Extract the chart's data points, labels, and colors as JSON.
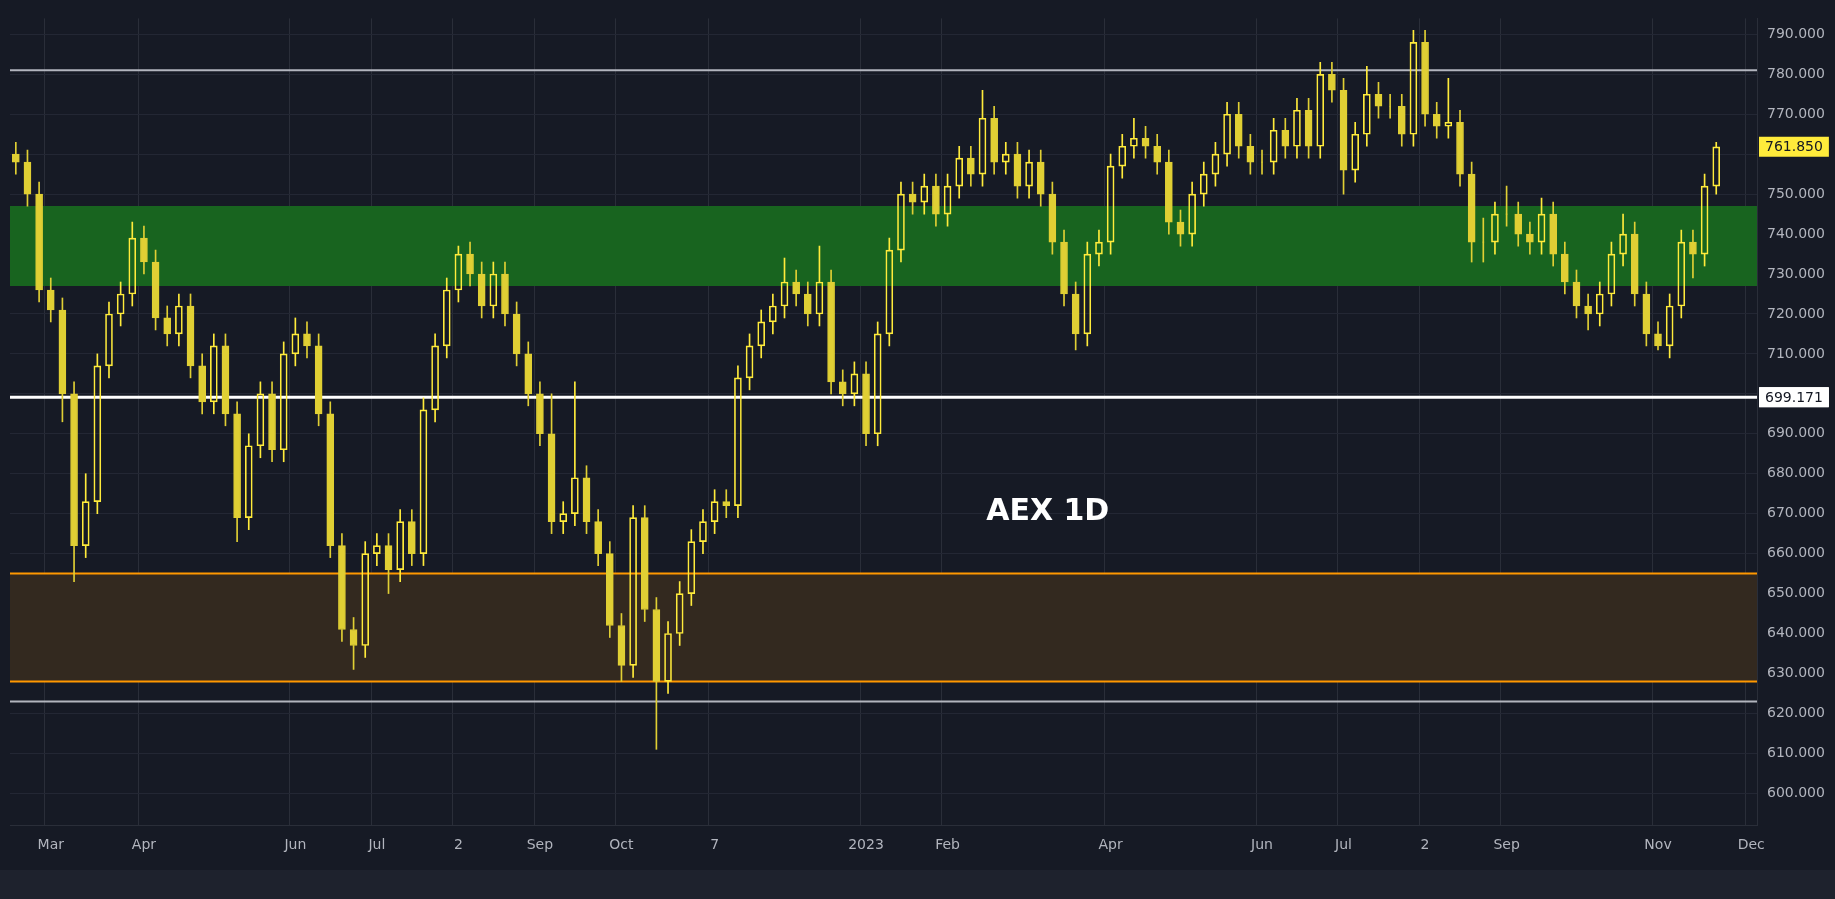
{
  "chart_data": {
    "type": "candlestick",
    "title": "AEX 1D",
    "color": "#ffeb3b",
    "categories": [
      null,
      null,
      null,
      "Mar",
      null,
      null,
      null,
      null,
      null,
      null,
      null,
      "Apr",
      null,
      null,
      null,
      null,
      null,
      null,
      null,
      null,
      null,
      null,
      null,
      null,
      "Jun",
      null,
      null,
      null,
      null,
      null,
      null,
      "Jul",
      null,
      null,
      null,
      null,
      null,
      null,
      "2",
      null,
      null,
      null,
      null,
      null,
      null,
      "Sep",
      null,
      null,
      null,
      null,
      null,
      null,
      "Oct",
      null,
      null,
      null,
      null,
      null,
      null,
      null,
      "7",
      null,
      null,
      null,
      null,
      null,
      null,
      null,
      null,
      null,
      null,
      null,
      null,
      "2023",
      null,
      null,
      null,
      null,
      null,
      null,
      "Feb",
      null,
      null,
      null,
      null,
      null,
      null,
      null,
      null,
      null,
      null,
      null,
      null,
      null,
      "Apr",
      null,
      null,
      null,
      null,
      null,
      null,
      null,
      null,
      null,
      null,
      null,
      null,
      "Jun",
      null,
      null,
      null,
      null,
      null,
      null,
      "Jul",
      null,
      null,
      null,
      null,
      null,
      null,
      "2",
      null,
      null,
      null,
      null,
      null,
      null,
      "Sep",
      null,
      null,
      null,
      null,
      null,
      null,
      null,
      null,
      null,
      null,
      null,
      null,
      "Nov",
      null,
      null,
      null,
      null,
      null,
      null,
      null,
      "Dec"
    ],
    "ohlc": [
      [
        760,
        763,
        755,
        758
      ],
      [
        758,
        761,
        747,
        750
      ],
      [
        750,
        753,
        723,
        726
      ],
      [
        726,
        729,
        718,
        721
      ],
      [
        721,
        724,
        693,
        700
      ],
      [
        700,
        703,
        653,
        662
      ],
      [
        662,
        680,
        659,
        673
      ],
      [
        673,
        710,
        670,
        707
      ],
      [
        707,
        723,
        704,
        720
      ],
      [
        720,
        728,
        717,
        725
      ],
      [
        725,
        743,
        722,
        739
      ],
      [
        739,
        742,
        730,
        733
      ],
      [
        733,
        736,
        716,
        719
      ],
      [
        719,
        722,
        712,
        715
      ],
      [
        715,
        725,
        712,
        722
      ],
      [
        722,
        725,
        704,
        707
      ],
      [
        707,
        710,
        695,
        698
      ],
      [
        698,
        715,
        695,
        712
      ],
      [
        712,
        715,
        692,
        695
      ],
      [
        695,
        698,
        663,
        669
      ],
      [
        669,
        690,
        666,
        687
      ],
      [
        687,
        703,
        684,
        700
      ],
      [
        700,
        703,
        683,
        686
      ],
      [
        686,
        713,
        683,
        710
      ],
      [
        710,
        719,
        707,
        715
      ],
      [
        715,
        718,
        709,
        712
      ],
      [
        712,
        715,
        692,
        695
      ],
      [
        695,
        698,
        659,
        662
      ],
      [
        662,
        665,
        638,
        641
      ],
      [
        641,
        644,
        631,
        637
      ],
      [
        637,
        663,
        634,
        660
      ],
      [
        660,
        665,
        657,
        662
      ],
      [
        662,
        665,
        650,
        656
      ],
      [
        656,
        671,
        653,
        668
      ],
      [
        668,
        671,
        657,
        660
      ],
      [
        660,
        699,
        657,
        696
      ],
      [
        696,
        715,
        693,
        712
      ],
      [
        712,
        729,
        709,
        726
      ],
      [
        726,
        737,
        723,
        735
      ],
      [
        735,
        738,
        727,
        730
      ],
      [
        730,
        733,
        719,
        722
      ],
      [
        722,
        733,
        719,
        730
      ],
      [
        730,
        733,
        717,
        720
      ],
      [
        720,
        723,
        707,
        710
      ],
      [
        710,
        713,
        697,
        700
      ],
      [
        700,
        703,
        687,
        690
      ],
      [
        690,
        700,
        665,
        668
      ],
      [
        668,
        673,
        665,
        670
      ],
      [
        670,
        703,
        667,
        679
      ],
      [
        679,
        682,
        665,
        668
      ],
      [
        668,
        671,
        657,
        660
      ],
      [
        660,
        663,
        639,
        642
      ],
      [
        642,
        645,
        628,
        632
      ],
      [
        632,
        672,
        629,
        669
      ],
      [
        669,
        672,
        643,
        646
      ],
      [
        646,
        649,
        611,
        628
      ],
      [
        628,
        643,
        625,
        640
      ],
      [
        640,
        653,
        637,
        650
      ],
      [
        650,
        666,
        647,
        663
      ],
      [
        663,
        671,
        660,
        668
      ],
      [
        668,
        676,
        665,
        673
      ],
      [
        673,
        676,
        669,
        672
      ],
      [
        672,
        707,
        669,
        704
      ],
      [
        704,
        715,
        701,
        712
      ],
      [
        712,
        721,
        709,
        718
      ],
      [
        718,
        725,
        715,
        722
      ],
      [
        722,
        734,
        719,
        728
      ],
      [
        728,
        731,
        722,
        725
      ],
      [
        725,
        728,
        717,
        720
      ],
      [
        720,
        737,
        717,
        728
      ],
      [
        728,
        731,
        700,
        703
      ],
      [
        703,
        706,
        697,
        700
      ],
      [
        700,
        708,
        697,
        705
      ],
      [
        705,
        708,
        687,
        690
      ],
      [
        690,
        718,
        687,
        715
      ],
      [
        715,
        739,
        712,
        736
      ],
      [
        736,
        753,
        733,
        750
      ],
      [
        750,
        753,
        745,
        748
      ],
      [
        748,
        755,
        745,
        752
      ],
      [
        752,
        755,
        742,
        745
      ],
      [
        745,
        755,
        742,
        752
      ],
      [
        752,
        762,
        749,
        759
      ],
      [
        759,
        762,
        752,
        755
      ],
      [
        755,
        776,
        752,
        769
      ],
      [
        769,
        772,
        755,
        758
      ],
      [
        758,
        763,
        755,
        760
      ],
      [
        760,
        763,
        749,
        752
      ],
      [
        752,
        761,
        749,
        758
      ],
      [
        758,
        761,
        747,
        750
      ],
      [
        750,
        753,
        735,
        738
      ],
      [
        738,
        741,
        722,
        725
      ],
      [
        725,
        728,
        711,
        715
      ],
      [
        715,
        738,
        712,
        735
      ],
      [
        735,
        741,
        732,
        738
      ],
      [
        738,
        760,
        735,
        757
      ],
      [
        757,
        765,
        754,
        762
      ],
      [
        762,
        769,
        759,
        764
      ],
      [
        764,
        767,
        759,
        762
      ],
      [
        762,
        765,
        755,
        758
      ],
      [
        758,
        761,
        740,
        743
      ],
      [
        743,
        746,
        737,
        740
      ],
      [
        740,
        753,
        737,
        750
      ],
      [
        750,
        758,
        747,
        755
      ],
      [
        755,
        763,
        752,
        760
      ],
      [
        760,
        773,
        757,
        770
      ],
      [
        770,
        773,
        759,
        762
      ],
      [
        762,
        765,
        755,
        758
      ],
      [
        758,
        761,
        755,
        758
      ],
      [
        758,
        769,
        755,
        766
      ],
      [
        766,
        769,
        759,
        762
      ],
      [
        762,
        774,
        759,
        771
      ],
      [
        771,
        774,
        759,
        762
      ],
      [
        762,
        783,
        759,
        780
      ],
      [
        780,
        783,
        773,
        776
      ],
      [
        776,
        779,
        750,
        756
      ],
      [
        756,
        768,
        753,
        765
      ],
      [
        765,
        782,
        762,
        775
      ],
      [
        775,
        778,
        769,
        772
      ],
      [
        772,
        775,
        769,
        772
      ],
      [
        772,
        775,
        762,
        765
      ],
      [
        765,
        791,
        762,
        788
      ],
      [
        788,
        791,
        767,
        770
      ],
      [
        770,
        773,
        764,
        767
      ],
      [
        767,
        779,
        764,
        768
      ],
      [
        768,
        771,
        752,
        755
      ],
      [
        755,
        758,
        733,
        738
      ],
      [
        738,
        744,
        733,
        738
      ],
      [
        738,
        748,
        735,
        745
      ],
      [
        745,
        752,
        742,
        745
      ],
      [
        745,
        748,
        737,
        740
      ],
      [
        740,
        743,
        735,
        738
      ],
      [
        738,
        749,
        735,
        745
      ],
      [
        745,
        748,
        732,
        735
      ],
      [
        735,
        738,
        725,
        728
      ],
      [
        728,
        731,
        719,
        722
      ],
      [
        722,
        725,
        716,
        720
      ],
      [
        720,
        728,
        717,
        725
      ],
      [
        725,
        738,
        722,
        735
      ],
      [
        735,
        745,
        732,
        740
      ],
      [
        740,
        743,
        722,
        725
      ],
      [
        725,
        728,
        712,
        715
      ],
      [
        715,
        718,
        711,
        712
      ],
      [
        712,
        725,
        709,
        722
      ],
      [
        722,
        741,
        719,
        738
      ],
      [
        738,
        741,
        729,
        735
      ],
      [
        735,
        755,
        732,
        752
      ],
      [
        752,
        763,
        750,
        761.85
      ],
      null,
      null,
      null
    ],
    "colors": [
      "#e0cf34",
      "#e0cf34",
      "#e0cf34",
      "#e0cf34",
      "#e0cf34",
      "#e0cf34",
      "#ffeb3b",
      "#ffeb3b",
      "#ffeb3b",
      "#ffeb3b",
      "#ffeb3b",
      "#e0cf34",
      "#e0cf34",
      "#e0cf34",
      "#ffeb3b",
      "#e0cf34",
      "#e0cf34",
      "#ffeb3b",
      "#e0cf34",
      "#e0cf34",
      "#ffeb3b",
      "#ffeb3b",
      "#e0cf34",
      "#ffeb3b",
      "#ffeb3b",
      "#e0cf34",
      "#e0cf34",
      "#e0cf34",
      "#e0cf34",
      "#e0cf34",
      "#ffeb3b",
      "#ffeb3b",
      "#e0cf34",
      "#ffeb3b",
      "#e0cf34",
      "#ffeb3b",
      "#ffeb3b",
      "#ffeb3b",
      "#ffeb3b",
      "#e0cf34",
      "#e0cf34",
      "#ffeb3b",
      "#e0cf34",
      "#e0cf34",
      "#e0cf34",
      "#e0cf34",
      "#e0cf34",
      "#ffeb3b",
      "#ffeb3b",
      "#e0cf34",
      "#e0cf34",
      "#e0cf34",
      "#e0cf34",
      "#ffeb3b",
      "#e0cf34",
      "#e0cf34",
      "#ffeb3b",
      "#ffeb3b",
      "#ffeb3b",
      "#ffeb3b",
      "#ffeb3b",
      "#e0cf34",
      "#ffeb3b",
      "#ffeb3b",
      "#ffeb3b",
      "#ffeb3b",
      "#ffeb3b",
      "#e0cf34",
      "#e0cf34",
      "#ffeb3b",
      "#e0cf34",
      "#e0cf34",
      "#ffeb3b",
      "#e0cf34",
      "#ffeb3b",
      "#ffeb3b",
      "#ffeb3b",
      "#e0cf34",
      "#ffeb3b",
      "#e0cf34",
      "#ffeb3b",
      "#ffeb3b",
      "#e0cf34",
      "#ffeb3b",
      "#e0cf34",
      "#ffeb3b",
      "#e0cf34",
      "#ffeb3b",
      "#e0cf34",
      "#e0cf34",
      "#e0cf34",
      "#e0cf34",
      "#ffeb3b",
      "#ffeb3b",
      "#ffeb3b",
      "#ffeb3b",
      "#ffeb3b",
      "#e0cf34",
      "#e0cf34",
      "#e0cf34",
      "#e0cf34",
      "#ffeb3b",
      "#ffeb3b",
      "#ffeb3b",
      "#ffeb3b",
      "#e0cf34",
      "#e0cf34",
      "#e0cf34",
      "#ffeb3b",
      "#e0cf34",
      "#ffeb3b",
      "#e0cf34",
      "#ffeb3b",
      "#e0cf34",
      "#e0cf34",
      "#ffeb3b",
      "#ffeb3b",
      "#e0cf34",
      "#e0cf34",
      "#e0cf34",
      "#ffeb3b",
      "#e0cf34",
      "#e0cf34",
      "#ffeb3b",
      "#e0cf34",
      "#e0cf34",
      "#e0cf34",
      "#ffeb3b",
      "#e0cf34",
      "#e0cf34",
      "#e0cf34",
      "#ffeb3b",
      "#e0cf34",
      "#e0cf34",
      "#e0cf34",
      "#e0cf34",
      "#ffeb3b",
      "#ffeb3b",
      "#ffeb3b",
      "#e0cf34",
      "#e0cf34",
      "#e0cf34",
      "#ffeb3b",
      "#ffeb3b",
      "#e0cf34",
      "#ffeb3b",
      "#ffeb3b",
      null,
      null,
      null
    ],
    "ylim": [
      592,
      794
    ],
    "yticks": [
      {
        "value": 600,
        "label": "600.000"
      },
      {
        "value": 610,
        "label": "610.000"
      },
      {
        "value": 620,
        "label": "620.000"
      },
      {
        "value": 630,
        "label": "630.000"
      },
      {
        "value": 640,
        "label": "640.000"
      },
      {
        "value": 650,
        "label": "650.000"
      },
      {
        "value": 660,
        "label": "660.000"
      },
      {
        "value": 670,
        "label": "670.000"
      },
      {
        "value": 680,
        "label": "680.000"
      },
      {
        "value": 690,
        "label": "690.000"
      },
      {
        "value": 700,
        "label": null
      },
      {
        "value": 710,
        "label": "710.000"
      },
      {
        "value": 720,
        "label": "720.000"
      },
      {
        "value": 730,
        "label": "730.000"
      },
      {
        "value": 740,
        "label": "740.000"
      },
      {
        "value": 750,
        "label": "750.000"
      },
      {
        "value": 760,
        "label": null
      },
      {
        "value": 770,
        "label": "770.000"
      },
      {
        "value": 780,
        "label": "780.000"
      },
      {
        "value": 790,
        "label": "790.000"
      }
    ],
    "grid": true,
    "bands": [
      {
        "axis": "y",
        "from": 727,
        "to": 747,
        "color": "#18641f"
      },
      {
        "axis": "y",
        "from": 628,
        "to": 655,
        "color": "#33291f"
      }
    ],
    "ref_lines": [
      {
        "axis": "y",
        "value": 781,
        "color": "#b2b5be"
      },
      {
        "axis": "y",
        "value": 699.171,
        "label": "699.171",
        "color": "#ffffff"
      },
      {
        "axis": "y",
        "value": 623,
        "color": "#b2b5be"
      },
      {
        "axis": "y",
        "value": 655,
        "color": "#ff9800"
      },
      {
        "axis": "y",
        "value": 628,
        "color": "#ff9800"
      }
    ],
    "annotations": [
      "761.850"
    ]
  }
}
